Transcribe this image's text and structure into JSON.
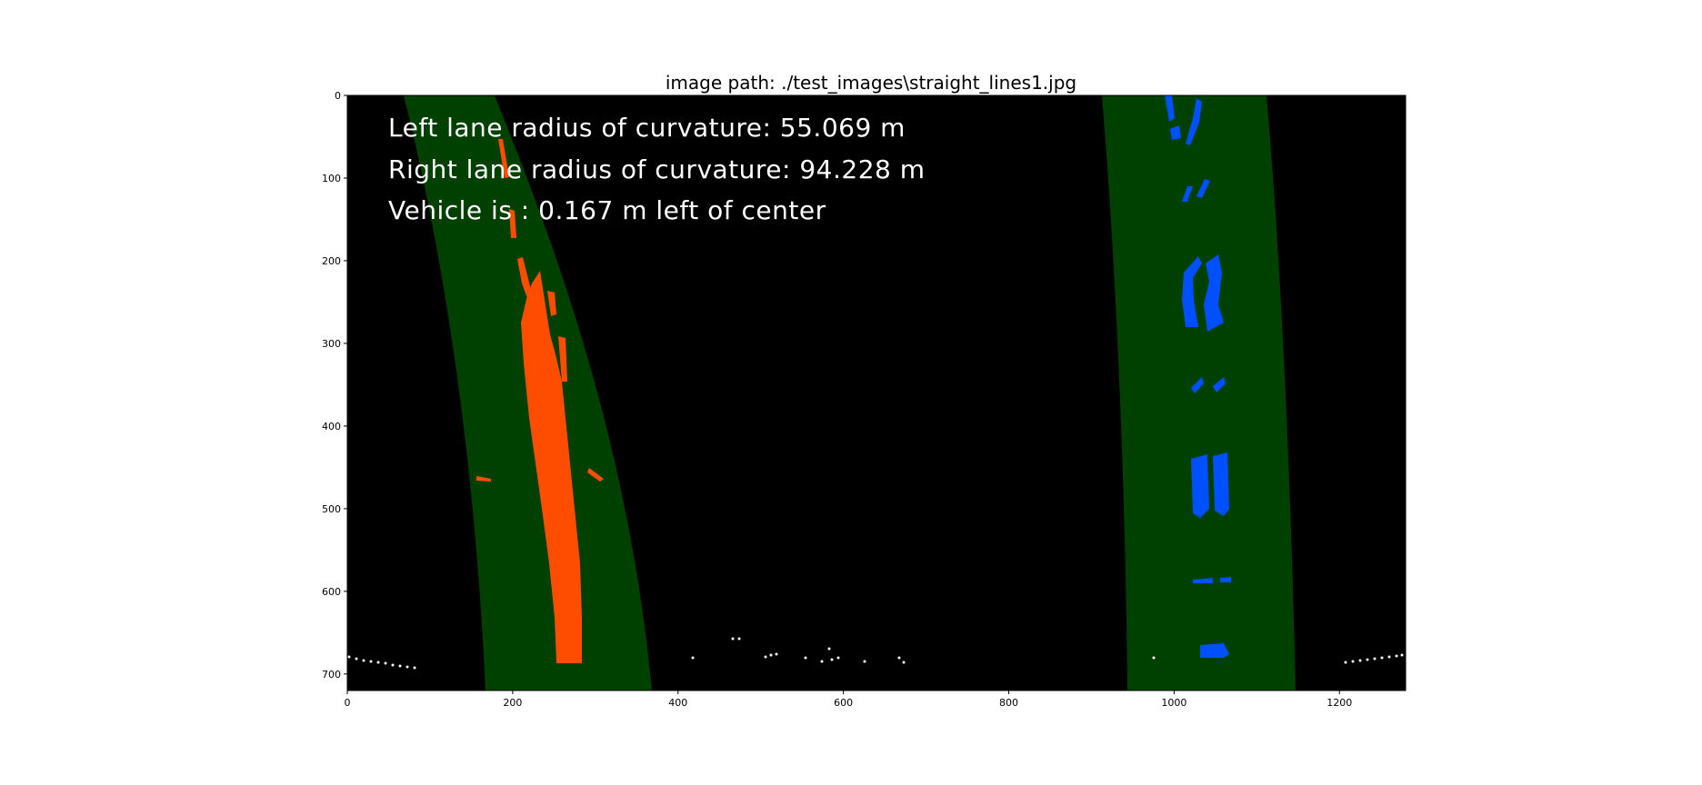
{
  "figure": {
    "title": "image path: ./test_images\\straight_lines1.jpg"
  },
  "image": {
    "width": 1280,
    "height": 720,
    "background_color": "#000000",
    "lane_fill_color": "#004000",
    "left_lane_pixel_color": "#ff4d00",
    "right_lane_pixel_color": "#0050ff",
    "noise_pixel_color": "#ffffff"
  },
  "axes": {
    "x_ticks": [
      0,
      200,
      400,
      600,
      800,
      1000,
      1200
    ],
    "y_ticks": [
      0,
      100,
      200,
      300,
      400,
      500,
      600,
      700
    ],
    "x_tick_labels": [
      "0",
      "200",
      "400",
      "600",
      "800",
      "1000",
      "1200"
    ],
    "y_tick_labels": [
      "0",
      "100",
      "200",
      "300",
      "400",
      "500",
      "600",
      "700"
    ]
  },
  "overlay": {
    "line1": "Left lane radius of curvature: 55.069 m",
    "line2": "Right lane radius of curvature: 94.228 m",
    "line3": "Vehicle is : 0.167 m left of center"
  }
}
